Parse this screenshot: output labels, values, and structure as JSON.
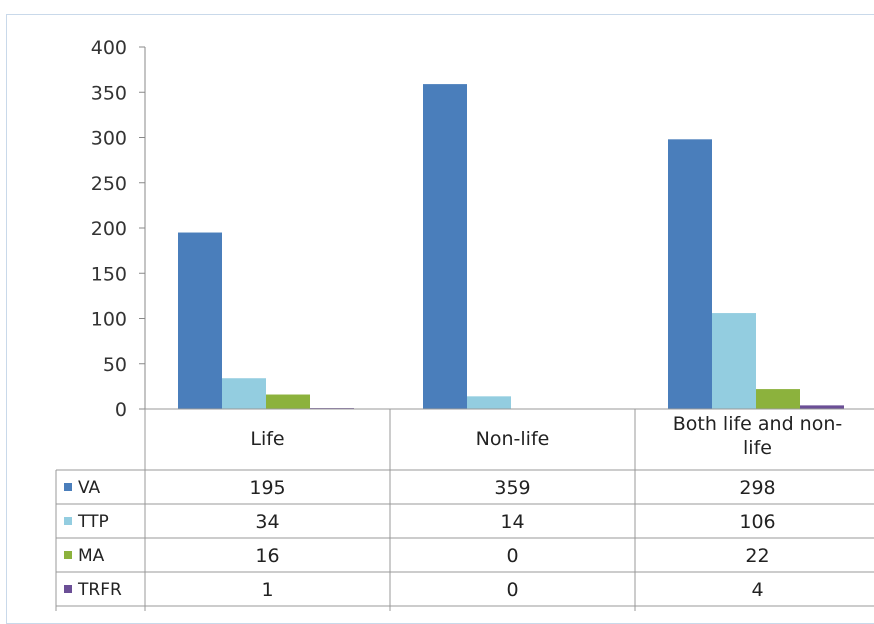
{
  "chart_data": {
    "type": "bar",
    "categories": [
      "Life",
      "Non-life",
      "Both life and non-life"
    ],
    "series": [
      {
        "name": "VA",
        "values": [
          195,
          359,
          298
        ],
        "color": "#4a7ebb"
      },
      {
        "name": "TTP",
        "values": [
          34,
          14,
          106
        ],
        "color": "#93cde0"
      },
      {
        "name": "MA",
        "values": [
          16,
          0,
          22
        ],
        "color": "#8cb23d"
      },
      {
        "name": "TRFR",
        "values": [
          1,
          0,
          4
        ],
        "color": "#6b4f96"
      }
    ],
    "table_values": [
      [
        "195",
        "359",
        "298"
      ],
      [
        "34",
        "14",
        "106"
      ],
      [
        "16",
        "0",
        "22"
      ],
      [
        "1",
        "0",
        "4"
      ]
    ],
    "yticks": [
      "0",
      "50",
      "100",
      "150",
      "200",
      "250",
      "300",
      "350",
      "400"
    ],
    "ylim": [
      0,
      400
    ],
    "grid": false,
    "legend": "data-table"
  }
}
